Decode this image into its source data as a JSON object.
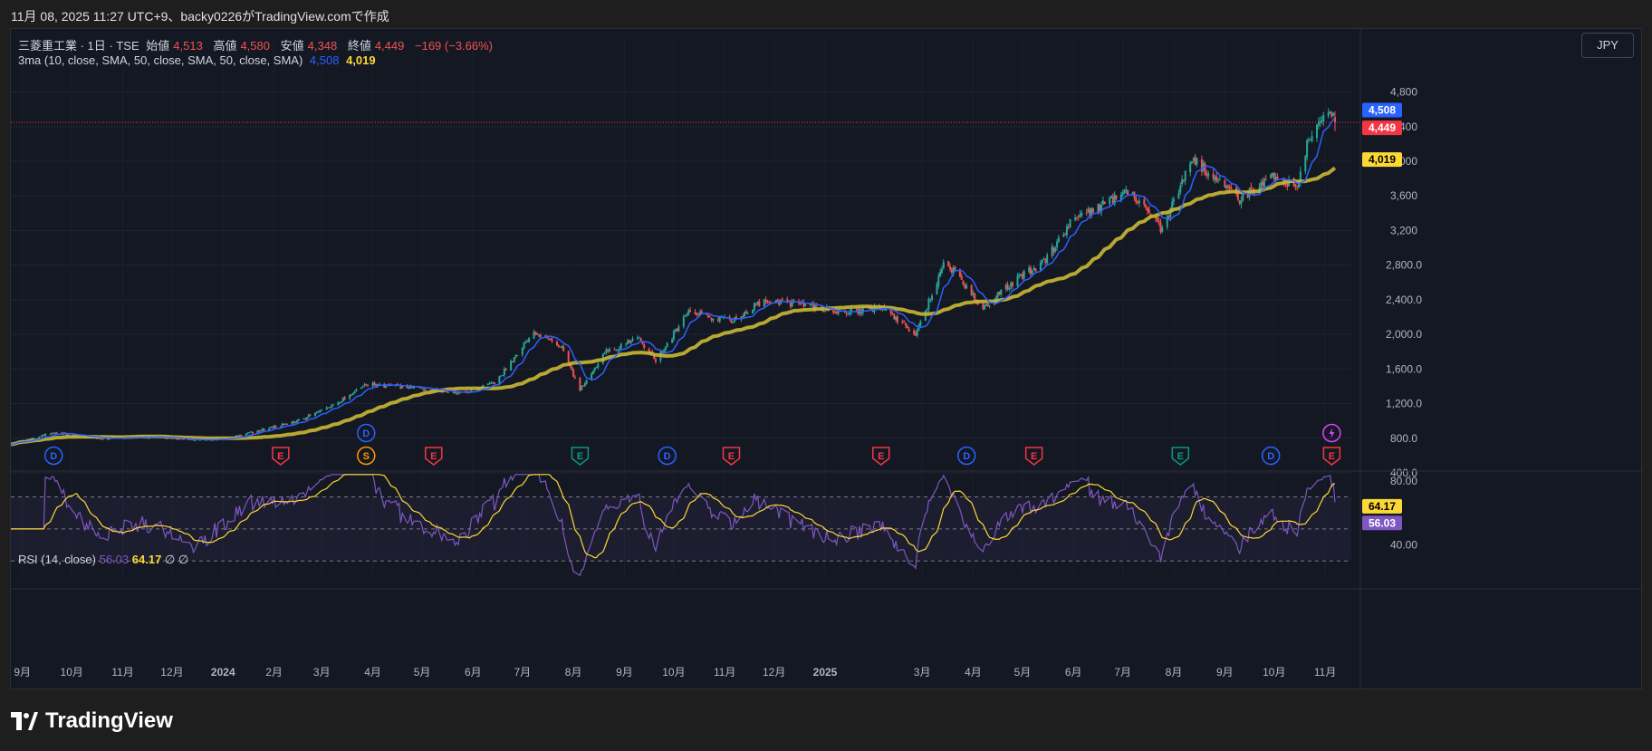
{
  "caption": "11月 08, 2025 11:27 UTC+9、backy0226がTradingView.comで作成",
  "header": {
    "symbol": "三菱重工業 · 1日 · TSE",
    "open_label": "始値",
    "open_value": "4,513",
    "high_label": "高値",
    "high_value": "4,580",
    "low_label": "安値",
    "low_value": "4,348",
    "close_label": "終値",
    "close_value": "4,449",
    "change": "−169 (−3.66%)"
  },
  "ma_legend": {
    "label": "3ma (10, close, SMA, 50, close, SMA, 50, close, SMA)",
    "v1": "4,508",
    "v2": "4,019"
  },
  "currency": "JPY",
  "rsi_legend": {
    "label": "RSI (14, close)",
    "v1": "56.03",
    "v2": "64.17",
    "icon1": "∅",
    "icon2": "∅"
  },
  "logo_text": "TradingView",
  "colors": {
    "up": "#26a69a",
    "down": "#ef5350",
    "ma_fast": "#2962ff",
    "ma_slow": "#c9b836",
    "rsi": "#7e57c2",
    "rsi_ma": "#fdd835",
    "price_line": "#f23645"
  },
  "chart_data": [
    {
      "type": "candlestick",
      "title": "三菱重工業 · 1日 · TSE",
      "y_ticks": [
        "4,800",
        "4,400",
        "4,000",
        "3,600",
        "3,200",
        "2,800.0",
        "2,400.0",
        "2,000.0",
        "1,600.0",
        "1,200.0",
        "800.0",
        "400.0"
      ],
      "ylim": [
        400,
        4900
      ],
      "x_ticks": [
        "9月",
        "10月",
        "11月",
        "12月",
        "2024",
        "2月",
        "3月",
        "4月",
        "5月",
        "6月",
        "7月",
        "8月",
        "9月",
        "10月",
        "11月",
        "12月",
        "2025",
        "3月",
        "4月",
        "5月",
        "6月",
        "7月",
        "8月",
        "9月",
        "10月",
        "11月"
      ],
      "price_labels": [
        {
          "value": "4,508",
          "color": "#2962ff"
        },
        {
          "value": "4,449",
          "color": "#f23645"
        },
        {
          "value": "4,019",
          "color": "#fdd835"
        }
      ],
      "key_points": [
        {
          "date": "2023-08-25",
          "price": 740
        },
        {
          "date": "2023-09-20",
          "price": 860
        },
        {
          "date": "2023-10-20",
          "price": 795
        },
        {
          "date": "2023-11-20",
          "price": 820
        },
        {
          "date": "2023-12-20",
          "price": 780
        },
        {
          "date": "2024-01-05",
          "price": 800
        },
        {
          "date": "2024-02-15",
          "price": 1000
        },
        {
          "date": "2024-03-05",
          "price": 1150
        },
        {
          "date": "2024-03-28",
          "price": 1420
        },
        {
          "date": "2024-05-01",
          "price": 1380
        },
        {
          "date": "2024-05-25",
          "price": 1320
        },
        {
          "date": "2024-06-15",
          "price": 1450
        },
        {
          "date": "2024-07-08",
          "price": 2050
        },
        {
          "date": "2024-07-25",
          "price": 1850
        },
        {
          "date": "2024-08-05",
          "price": 1350
        },
        {
          "date": "2024-08-20",
          "price": 1800
        },
        {
          "date": "2024-09-10",
          "price": 1950
        },
        {
          "date": "2024-09-20",
          "price": 1700
        },
        {
          "date": "2024-10-10",
          "price": 2250
        },
        {
          "date": "2024-11-05",
          "price": 2150
        },
        {
          "date": "2024-11-25",
          "price": 2400
        },
        {
          "date": "2024-12-15",
          "price": 2350
        },
        {
          "date": "2025-01-10",
          "price": 2250
        },
        {
          "date": "2025-02-05",
          "price": 2300
        },
        {
          "date": "2025-02-25",
          "price": 2000
        },
        {
          "date": "2025-03-15",
          "price": 2850
        },
        {
          "date": "2025-04-07",
          "price": 2300
        },
        {
          "date": "2025-04-25",
          "price": 2600
        },
        {
          "date": "2025-05-15",
          "price": 2850
        },
        {
          "date": "2025-05-30",
          "price": 3300
        },
        {
          "date": "2025-06-20",
          "price": 3500
        },
        {
          "date": "2025-07-05",
          "price": 3650
        },
        {
          "date": "2025-07-25",
          "price": 3200
        },
        {
          "date": "2025-08-12",
          "price": 4050
        },
        {
          "date": "2025-08-25",
          "price": 3800
        },
        {
          "date": "2025-09-10",
          "price": 3550
        },
        {
          "date": "2025-09-30",
          "price": 3850
        },
        {
          "date": "2025-10-15",
          "price": 3700
        },
        {
          "date": "2025-10-22",
          "price": 4250
        },
        {
          "date": "2025-11-04",
          "price": 4650
        },
        {
          "date": "2025-11-07",
          "price": 4449
        }
      ],
      "events": [
        {
          "date": "2023-09-20",
          "label": "D",
          "kind": "dividend"
        },
        {
          "date": "2024-02-05",
          "label": "E",
          "kind": "earnings"
        },
        {
          "date": "2024-03-28",
          "label": "D",
          "kind": "dividend"
        },
        {
          "date": "2024-03-28",
          "label": "S",
          "kind": "split"
        },
        {
          "date": "2024-05-08",
          "label": "E",
          "kind": "earnings"
        },
        {
          "date": "2024-08-05",
          "label": "E",
          "kind": "earnings"
        },
        {
          "date": "2024-09-27",
          "label": "D",
          "kind": "dividend"
        },
        {
          "date": "2024-11-05",
          "label": "E",
          "kind": "earnings"
        },
        {
          "date": "2025-02-04",
          "label": "E",
          "kind": "earnings"
        },
        {
          "date": "2025-03-28",
          "label": "D",
          "kind": "dividend"
        },
        {
          "date": "2025-05-08",
          "label": "E",
          "kind": "earnings"
        },
        {
          "date": "2025-08-05",
          "label": "E",
          "kind": "earnings"
        },
        {
          "date": "2025-09-29",
          "label": "D",
          "kind": "dividend"
        },
        {
          "date": "2025-11-05",
          "label": "E",
          "kind": "earnings"
        }
      ]
    },
    {
      "type": "line",
      "title": "RSI (14, close)",
      "y_ticks": [
        "80.00",
        "40.00"
      ],
      "ylim": [
        20,
        85
      ],
      "bands": [
        70,
        50,
        30
      ],
      "current": {
        "rsi": "56.03",
        "rsi_ma": "64.17"
      }
    }
  ]
}
